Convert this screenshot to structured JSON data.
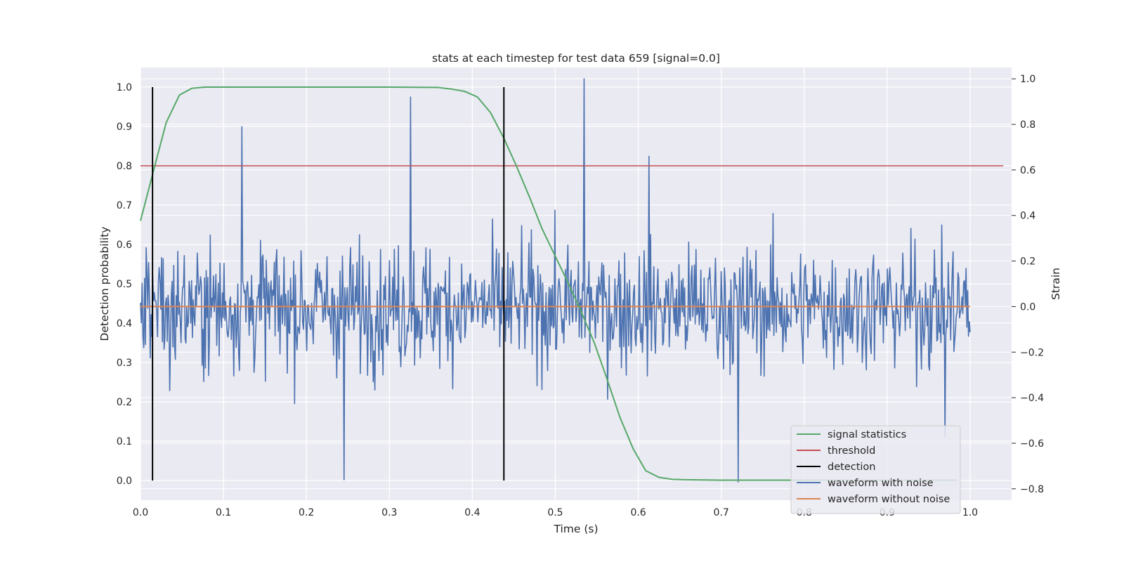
{
  "chart_data": {
    "type": "line",
    "title": "stats at each timestep for test data 659 [signal=0.0]",
    "xlabel": "Time (s)",
    "ylabel": "Detection probability",
    "ylabel_right": "Strain",
    "xlim": [
      0.0,
      1.05
    ],
    "ylim": [
      -0.05,
      1.05
    ],
    "ylim_right": [
      -0.85,
      1.05
    ],
    "x_ticks": [
      "0.0",
      "0.1",
      "0.2",
      "0.3",
      "0.4",
      "0.5",
      "0.6",
      "0.7",
      "0.8",
      "0.9",
      "1.0"
    ],
    "y_ticks": [
      "0.0",
      "0.1",
      "0.2",
      "0.3",
      "0.4",
      "0.5",
      "0.6",
      "0.7",
      "0.8",
      "0.9",
      "1.0"
    ],
    "y_ticks_right": [
      "−0.8",
      "−0.6",
      "−0.4",
      "−0.2",
      "0.0",
      "0.2",
      "0.4",
      "0.6",
      "0.8",
      "1.0"
    ],
    "grid": true,
    "legend_position": "lower-right",
    "series": [
      {
        "name": "signal statistics",
        "color": "#55a868",
        "axis": "left",
        "x": [
          0.0,
          0.016,
          0.031,
          0.047,
          0.062,
          0.078,
          0.094,
          0.2,
          0.3,
          0.359,
          0.375,
          0.391,
          0.406,
          0.422,
          0.438,
          0.453,
          0.469,
          0.484,
          0.5,
          0.516,
          0.531,
          0.547,
          0.562,
          0.578,
          0.594,
          0.609,
          0.625,
          0.641,
          0.656,
          0.7,
          0.8,
          0.9,
          0.984
        ],
        "y": [
          0.66,
          0.79,
          0.91,
          0.98,
          0.997,
          1.0,
          1.0,
          1.0,
          1.0,
          0.999,
          0.995,
          0.989,
          0.975,
          0.935,
          0.87,
          0.8,
          0.72,
          0.64,
          0.57,
          0.5,
          0.43,
          0.35,
          0.26,
          0.16,
          0.08,
          0.025,
          0.008,
          0.003,
          0.002,
          0.001,
          0.001,
          0.001,
          0.001
        ]
      },
      {
        "name": "threshold",
        "color": "#c44e52",
        "axis": "left",
        "x": [
          0.0,
          1.04
        ],
        "y": [
          0.8,
          0.8
        ]
      },
      {
        "name": "detection",
        "color": "#000000",
        "axis": "left",
        "segments": [
          {
            "x": 0.0145,
            "y": [
              0.0,
              1.0
            ]
          },
          {
            "x": 0.438,
            "y": [
              0.0,
              1.0
            ]
          }
        ]
      },
      {
        "name": "waveform with noise",
        "color": "#4c72b0",
        "axis": "right",
        "x_start": 0.0,
        "x_end": 1.0,
        "strain_min": -0.77,
        "strain_max": 1.0,
        "notable_peaks": [
          {
            "x": 0.122,
            "y": 0.79
          },
          {
            "x": 0.245,
            "y": -0.76
          },
          {
            "x": 0.326,
            "y": 0.92
          },
          {
            "x": 0.535,
            "y": 1.0
          },
          {
            "x": 0.613,
            "y": 0.66
          },
          {
            "x": 0.72,
            "y": -0.77
          },
          {
            "x": 0.97,
            "y": -0.57
          }
        ]
      },
      {
        "name": "waveform without noise",
        "color": "#dd8452",
        "axis": "right",
        "x": [
          0.0,
          1.0
        ],
        "y": [
          0.0,
          0.0
        ]
      }
    ]
  }
}
